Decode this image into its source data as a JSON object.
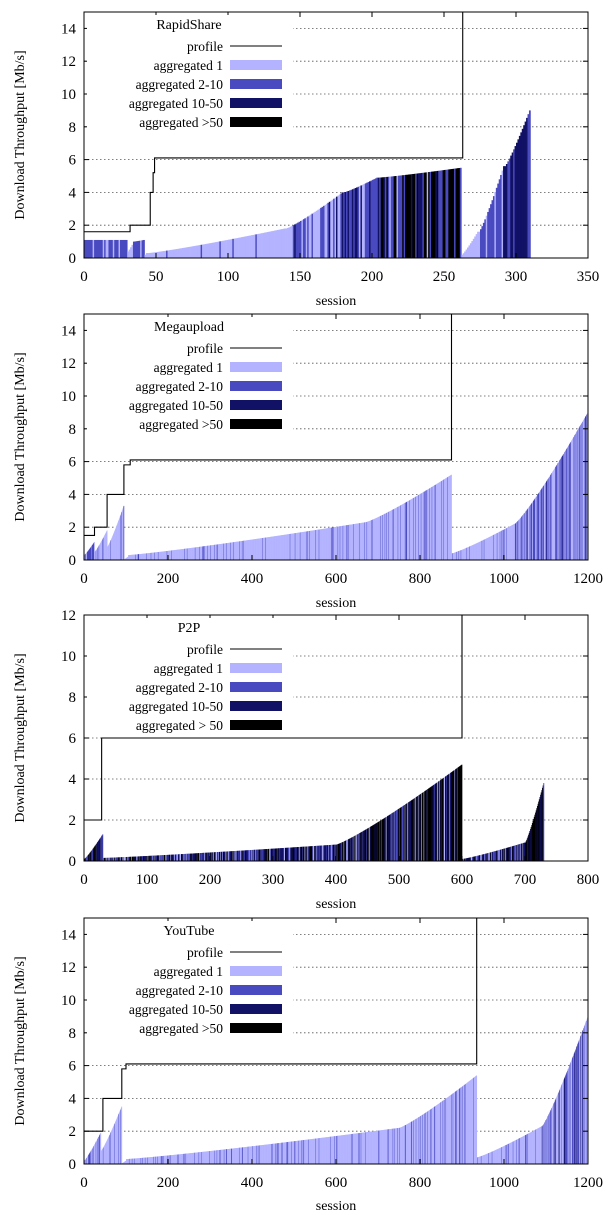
{
  "legend": {
    "colors": {
      "profile": "#000000",
      "aggregated 1": "#b3b3ff",
      "aggregated 2-10": "#4a4ac0",
      "aggregated 10-50": "#111166",
      "aggregated >50": "#000000"
    }
  },
  "chart_data": [
    {
      "type": "bar",
      "title": "RapidShare",
      "xlabel": "session",
      "ylabel": "Download Throughput [Mb/s]",
      "xlim": [
        0,
        350
      ],
      "ylim": [
        0,
        15
      ],
      "xticks": [
        0,
        50,
        100,
        150,
        200,
        250,
        300,
        350
      ],
      "yticks": [
        0,
        2,
        4,
        6,
        8,
        10,
        12,
        14
      ],
      "grid": "horizontal dotted",
      "legend_position": "top-left",
      "legend": [
        "profile",
        "aggregated 1",
        "aggregated 2-10",
        "aggregated 10-50",
        "aggregated >50"
      ],
      "profile": {
        "x": [
          0,
          32,
          32,
          46,
          46,
          48,
          48,
          49,
          49,
          263,
          263
        ],
        "y": [
          1.6,
          1.6,
          2.0,
          2.0,
          4.0,
          4.0,
          5.2,
          5.2,
          6.1,
          6.1,
          15
        ]
      },
      "segments": [
        {
          "n": 30,
          "y0": 1.1,
          "y1": 1.1,
          "mix": [
            0.3,
            0.7,
            0.0,
            0.0
          ]
        },
        {
          "n": 4,
          "y0": 0.4,
          "y1": 0.8,
          "mix": [
            1.0,
            0.0,
            0.0,
            0.0
          ]
        },
        {
          "n": 8,
          "y0": 1.0,
          "y1": 1.1,
          "mix": [
            0.3,
            0.7,
            0.0,
            0.0
          ]
        },
        {
          "n": 2,
          "y0": 0.2,
          "y1": 0.3,
          "mix": [
            1.0,
            0.0,
            0.0,
            0.0
          ]
        },
        {
          "n": 96,
          "y0": 0.3,
          "y1": 1.8,
          "mix": [
            0.92,
            0.08,
            0.0,
            0.0
          ]
        },
        {
          "n": 40,
          "y0": 1.8,
          "y1": 4.0,
          "mix": [
            0.4,
            0.5,
            0.1,
            0.0
          ]
        },
        {
          "n": 24,
          "y0": 4.0,
          "y1": 4.9,
          "mix": [
            0.15,
            0.5,
            0.2,
            0.15
          ]
        },
        {
          "n": 58,
          "y0": 4.9,
          "y1": 5.5,
          "mix": [
            0.05,
            0.4,
            0.2,
            0.35
          ]
        },
        {
          "n": 12,
          "y0": 0.2,
          "y1": 1.6,
          "mix": [
            1.0,
            0.0,
            0.0,
            0.0
          ]
        },
        {
          "n": 18,
          "y0": 1.6,
          "y1": 5.6,
          "mix": [
            0.3,
            0.6,
            0.1,
            0.0
          ]
        },
        {
          "n": 18,
          "y0": 5.6,
          "y1": 9.0,
          "mix": [
            0.0,
            0.45,
            0.55,
            0.0
          ]
        },
        {
          "n": 40,
          "y0": 0.0,
          "y1": 0.0,
          "mix": [
            1.0,
            0.0,
            0.0,
            0.0
          ]
        }
      ]
    },
    {
      "type": "bar",
      "title": "Megaupload",
      "xlabel": "session",
      "ylabel": "Download Throughput [Mb/s]",
      "xlim": [
        0,
        1200
      ],
      "ylim": [
        0,
        15
      ],
      "xticks": [
        0,
        200,
        400,
        600,
        800,
        1000,
        1200
      ],
      "yticks": [
        0,
        2,
        4,
        6,
        8,
        10,
        12,
        14
      ],
      "grid": "horizontal dotted",
      "legend_position": "top-left",
      "legend": [
        "profile",
        "aggregated 1",
        "aggregated 2-10",
        "aggregated 10-50",
        "aggregated >50"
      ],
      "profile": {
        "x": [
          0,
          25,
          25,
          55,
          55,
          95,
          95,
          110,
          110,
          875,
          875
        ],
        "y": [
          1.5,
          1.5,
          2.0,
          2.0,
          4.0,
          4.0,
          5.8,
          5.8,
          6.1,
          6.1,
          15
        ]
      },
      "segments": [
        {
          "n": 25,
          "y0": 0.3,
          "y1": 1.1,
          "mix": [
            0.35,
            0.65,
            0.0,
            0.0
          ]
        },
        {
          "n": 30,
          "y0": 0.5,
          "y1": 1.8,
          "mix": [
            0.8,
            0.2,
            0.0,
            0.0
          ]
        },
        {
          "n": 40,
          "y0": 0.8,
          "y1": 3.3,
          "mix": [
            0.85,
            0.15,
            0.0,
            0.0
          ]
        },
        {
          "n": 10,
          "y0": 0.05,
          "y1": 0.2,
          "mix": [
            1.0,
            0.0,
            0.0,
            0.0
          ]
        },
        {
          "n": 565,
          "y0": 0.3,
          "y1": 2.3,
          "mix": [
            0.9,
            0.1,
            0.0,
            0.0
          ]
        },
        {
          "n": 205,
          "y0": 2.3,
          "y1": 5.2,
          "mix": [
            0.85,
            0.15,
            0.0,
            0.0
          ]
        },
        {
          "n": 150,
          "y0": 0.4,
          "y1": 2.2,
          "mix": [
            0.9,
            0.1,
            0.0,
            0.0
          ]
        },
        {
          "n": 175,
          "y0": 2.2,
          "y1": 9.0,
          "mix": [
            0.55,
            0.4,
            0.05,
            0.0
          ]
        }
      ]
    },
    {
      "type": "bar",
      "title": "P2P",
      "xlabel": "session",
      "ylabel": "Download Throughput [Mb/s]",
      "xlim": [
        0,
        800
      ],
      "ylim": [
        0,
        12
      ],
      "xticks": [
        0,
        100,
        200,
        300,
        400,
        500,
        600,
        700,
        800
      ],
      "yticks": [
        0,
        2,
        4,
        6,
        8,
        10,
        12
      ],
      "grid": "horizontal dotted",
      "legend_position": "top-left",
      "legend": [
        "profile",
        "aggregated 1",
        "aggregated 2-10",
        "aggregated 10-50",
        "aggregated > 50"
      ],
      "profile": {
        "x": [
          0,
          28,
          28,
          600,
          600
        ],
        "y": [
          2.0,
          2.0,
          6.0,
          6.0,
          12
        ]
      },
      "segments": [
        {
          "n": 30,
          "y0": 0.1,
          "y1": 1.3,
          "mix": [
            0.0,
            0.2,
            0.3,
            0.5
          ]
        },
        {
          "n": 370,
          "y0": 0.15,
          "y1": 0.8,
          "mix": [
            0.15,
            0.25,
            0.35,
            0.25
          ]
        },
        {
          "n": 200,
          "y0": 0.8,
          "y1": 4.7,
          "mix": [
            0.1,
            0.15,
            0.25,
            0.5
          ]
        },
        {
          "n": 100,
          "y0": 0.1,
          "y1": 0.9,
          "mix": [
            0.15,
            0.3,
            0.4,
            0.15
          ]
        },
        {
          "n": 30,
          "y0": 0.9,
          "y1": 3.8,
          "mix": [
            0.0,
            0.1,
            0.3,
            0.6
          ]
        },
        {
          "n": 70,
          "y0": 0.0,
          "y1": 0.0,
          "mix": [
            0.0,
            0.0,
            0.0,
            1.0
          ]
        }
      ]
    },
    {
      "type": "bar",
      "title": "YouTube",
      "xlabel": "session",
      "ylabel": "Download Throughput [Mb/s]",
      "xlim": [
        0,
        1200
      ],
      "ylim": [
        0,
        15
      ],
      "xticks": [
        0,
        200,
        400,
        600,
        800,
        1000,
        1200
      ],
      "yticks": [
        0,
        2,
        4,
        6,
        8,
        10,
        12,
        14
      ],
      "grid": "horizontal dotted",
      "legend_position": "top-left",
      "legend": [
        "profile",
        "aggregated 1",
        "aggregated 2-10",
        "aggregated 10-50",
        "aggregated >50"
      ],
      "profile": {
        "x": [
          0,
          45,
          45,
          90,
          90,
          100,
          100,
          935,
          935
        ],
        "y": [
          2.0,
          2.0,
          4.0,
          4.0,
          5.8,
          5.8,
          6.1,
          6.1,
          15
        ]
      },
      "segments": [
        {
          "n": 40,
          "y0": 0.2,
          "y1": 1.9,
          "mix": [
            0.7,
            0.3,
            0.0,
            0.0
          ]
        },
        {
          "n": 50,
          "y0": 0.8,
          "y1": 3.5,
          "mix": [
            0.9,
            0.1,
            0.0,
            0.0
          ]
        },
        {
          "n": 10,
          "y0": 0.05,
          "y1": 0.2,
          "mix": [
            1.0,
            0.0,
            0.0,
            0.0
          ]
        },
        {
          "n": 650,
          "y0": 0.3,
          "y1": 2.2,
          "mix": [
            0.9,
            0.1,
            0.0,
            0.0
          ]
        },
        {
          "n": 185,
          "y0": 2.2,
          "y1": 5.4,
          "mix": [
            0.85,
            0.15,
            0.0,
            0.0
          ]
        },
        {
          "n": 155,
          "y0": 0.4,
          "y1": 2.3,
          "mix": [
            0.88,
            0.12,
            0.0,
            0.0
          ]
        },
        {
          "n": 110,
          "y0": 2.3,
          "y1": 9.0,
          "mix": [
            0.5,
            0.45,
            0.05,
            0.0
          ]
        }
      ]
    }
  ]
}
